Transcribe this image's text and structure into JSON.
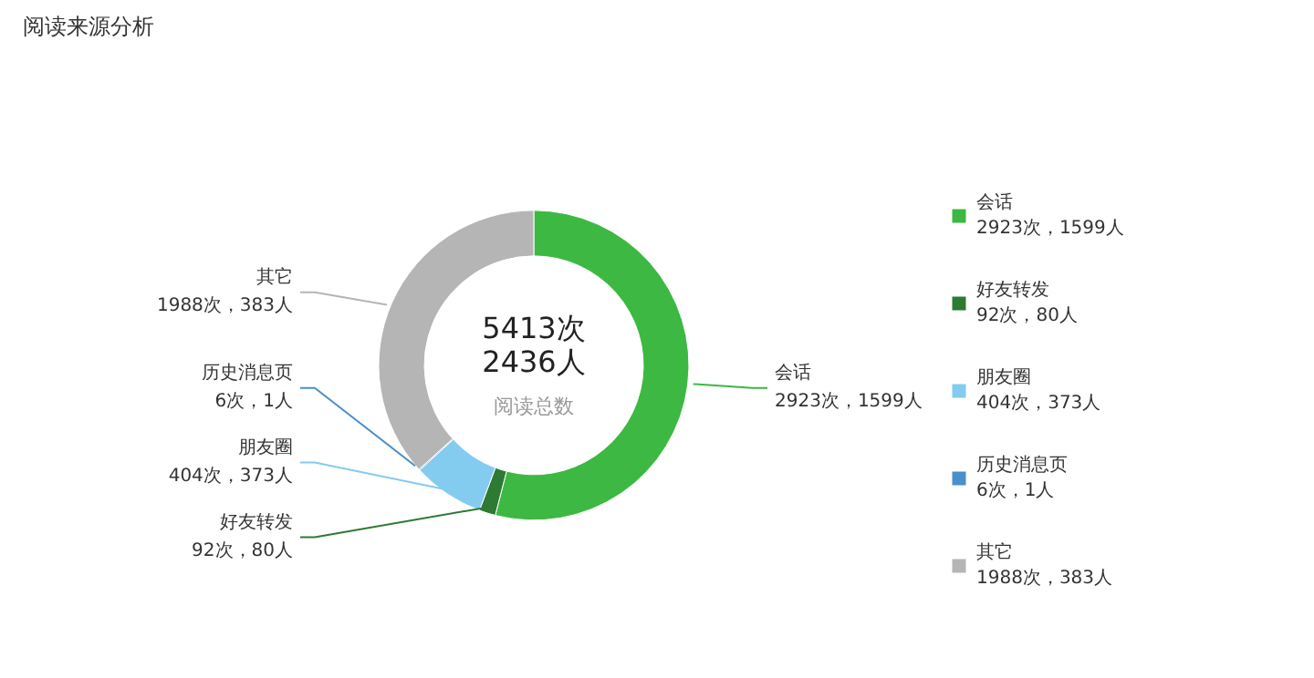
{
  "chart_data": {
    "type": "donut",
    "title": "阅读来源分析",
    "categories": [
      "会话",
      "好友转发",
      "朋友圈",
      "历史消息页",
      "其它"
    ],
    "values": [
      2923,
      92,
      404,
      6,
      1988
    ],
    "colors": [
      "#3db843",
      "#2c7a34",
      "#84cbf0",
      "#4a8fcb",
      "#b5b5b5"
    ],
    "value_labels": [
      "2923次，1599人",
      "92次，80人",
      "404次，373人",
      "6次，1人",
      "1988次，383人"
    ],
    "annotations": [
      "5413次",
      "2436人",
      "阅读总数"
    ],
    "legend": "right"
  }
}
